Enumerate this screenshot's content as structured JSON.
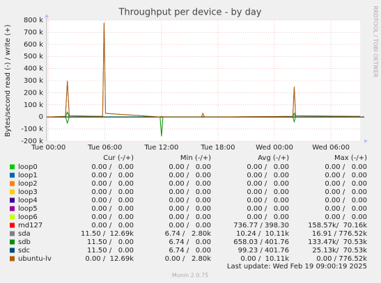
{
  "chart_data": {
    "type": "line",
    "title": "Throughput per device - by day",
    "y_label": "Bytes/second read (-) / write (+)",
    "side_label": "RRDTOOL / TOBI OETIKER",
    "x": [
      -0.2,
      1.8,
      2.0,
      2.2,
      5.75,
      5.9,
      6.05,
      11.85,
      12.0,
      12.15,
      16.25,
      16.4,
      16.55,
      25.95,
      26.1,
      26.25,
      33.1
    ],
    "xlim": [
      -0.2,
      33.1
    ],
    "xticks": [
      {
        "value": 0,
        "label": "Tue 00:00"
      },
      {
        "value": 6,
        "label": "Tue 06:00"
      },
      {
        "value": 12,
        "label": "Tue 12:00"
      },
      {
        "value": 18,
        "label": "Tue 18:00"
      },
      {
        "value": 24,
        "label": "Wed 00:00"
      },
      {
        "value": 30,
        "label": "Wed 06:00"
      }
    ],
    "ylim": [
      -200000,
      800000
    ],
    "yticks": [
      {
        "value": -200000,
        "label": "-200 k"
      },
      {
        "value": -100000,
        "label": "-100 k"
      },
      0,
      {
        "value": 100000,
        "label": "100 k"
      },
      {
        "value": 200000,
        "label": "200 k"
      },
      {
        "value": 300000,
        "label": "300 k"
      },
      {
        "value": 400000,
        "label": "400 k"
      },
      {
        "value": 500000,
        "label": "500 k"
      },
      {
        "value": 600000,
        "label": "600 k"
      },
      {
        "value": 700000,
        "label": "700 k"
      },
      {
        "value": 800000,
        "label": "800 k"
      }
    ],
    "grid": true,
    "stat_headers": [
      "Cur (-/+)",
      "Min (-/+)",
      "Avg (-/+)",
      "Max (-/+)"
    ],
    "series": [
      {
        "name": "loop0",
        "color": "#00cc00",
        "values": [
          0,
          0,
          0,
          0,
          0,
          0,
          0,
          0,
          0,
          0,
          0,
          0,
          0,
          0,
          0,
          0,
          0
        ],
        "stats": [
          "0.00 /   0.00",
          "0.00 /   0.00",
          "0.00 /   0.00",
          "0.00 /   0.00"
        ]
      },
      {
        "name": "loop1",
        "color": "#0066b3",
        "values": [
          0,
          0,
          0,
          0,
          0,
          0,
          0,
          0,
          0,
          0,
          0,
          0,
          0,
          0,
          0,
          0,
          0
        ],
        "stats": [
          "0.00 /   0.00",
          "0.00 /   0.00",
          "0.00 /   0.00",
          "0.00 /   0.00"
        ]
      },
      {
        "name": "loop2",
        "color": "#ff8000",
        "values": [
          0,
          0,
          0,
          0,
          0,
          0,
          0,
          0,
          0,
          0,
          0,
          0,
          0,
          0,
          0,
          0,
          0
        ],
        "stats": [
          "0.00 /   0.00",
          "0.00 /   0.00",
          "0.00 /   0.00",
          "0.00 /   0.00"
        ]
      },
      {
        "name": "loop3",
        "color": "#ffcc00",
        "values": [
          0,
          0,
          0,
          0,
          0,
          0,
          0,
          0,
          0,
          0,
          0,
          0,
          0,
          0,
          0,
          0,
          0
        ],
        "stats": [
          "0.00 /   0.00",
          "0.00 /   0.00",
          "0.00 /   0.00",
          "0.00 /   0.00"
        ]
      },
      {
        "name": "loop4",
        "color": "#330099",
        "values": [
          0,
          0,
          0,
          0,
          0,
          0,
          0,
          0,
          0,
          0,
          0,
          0,
          0,
          0,
          0,
          0,
          0
        ],
        "stats": [
          "0.00 /   0.00",
          "0.00 /   0.00",
          "0.00 /   0.00",
          "0.00 /   0.00"
        ]
      },
      {
        "name": "loop5",
        "color": "#990099",
        "values": [
          0,
          0,
          0,
          0,
          0,
          0,
          0,
          0,
          0,
          0,
          0,
          0,
          0,
          0,
          0,
          0,
          0
        ],
        "stats": [
          "0.00 /   0.00",
          "0.00 /   0.00",
          "0.00 /   0.00",
          "0.00 /   0.00"
        ]
      },
      {
        "name": "loop6",
        "color": "#ccff00",
        "values": [
          0,
          0,
          0,
          0,
          0,
          0,
          0,
          0,
          0,
          0,
          0,
          0,
          0,
          0,
          0,
          0,
          0
        ],
        "stats": [
          "0.00 /   0.00",
          "0.00 /   0.00",
          "0.00 /   0.00",
          "0.00 /   0.00"
        ]
      },
      {
        "name": "md127",
        "color": "#ff0000",
        "values": [
          0,
          0,
          0,
          0,
          0,
          0,
          0,
          0,
          0,
          0,
          0,
          0,
          0,
          0,
          0,
          0,
          0
        ],
        "stats": [
          "0.00 /   0.00",
          "0.00 /   0.00",
          "736.77 / 398.30",
          "158.57k/  70.16k"
        ]
      },
      {
        "name": "sda",
        "color": "#808080",
        "values": [
          0,
          5000,
          290000,
          10000,
          5000,
          770000,
          30000,
          0,
          5000,
          0,
          0,
          30000,
          0,
          5000,
          245000,
          10000,
          5000
        ],
        "stats": [
          "11.50 /  12.69k",
          "6.74 /   2.80k",
          "10.24 /  10.11k",
          "16.91 / 776.52k"
        ]
      },
      {
        "name": "sdb",
        "color": "#008f00",
        "values": [
          0,
          0,
          40000,
          0,
          0,
          0,
          0,
          0,
          0,
          0,
          0,
          0,
          0,
          0,
          30000,
          0,
          0
        ],
        "read_values": [
          0,
          0,
          -50000,
          0,
          0,
          0,
          0,
          0,
          -160000,
          0,
          0,
          0,
          0,
          0,
          -40000,
          0,
          0
        ],
        "stats": [
          "11.50 /   0.00",
          "6.74 /   0.00",
          "658.03 / 401.76",
          "133.47k/  70.53k"
        ]
      },
      {
        "name": "sdc",
        "color": "#00487d",
        "values": [
          0,
          0,
          0,
          0,
          0,
          0,
          0,
          0,
          0,
          0,
          0,
          0,
          0,
          0,
          0,
          0,
          0
        ],
        "stats": [
          "11.50 /   0.00",
          "6.74 /   0.00",
          "99.23 / 401.76",
          "25.13k/  70.53k"
        ]
      },
      {
        "name": "ubuntu-lv",
        "color": "#b35a00",
        "values": [
          0,
          5000,
          300000,
          10000,
          5000,
          780000,
          30000,
          0,
          5000,
          0,
          0,
          30000,
          0,
          5000,
          250000,
          10000,
          5000
        ],
        "stats": [
          "0.00 /  12.69k",
          "0.00 /   2.80k",
          "0.00 /  10.11k",
          "0.00 / 776.52k"
        ]
      }
    ],
    "last_update": "Last update: Wed Feb 19 09:00:19 2025",
    "footer": "Munin 2.0.75"
  }
}
